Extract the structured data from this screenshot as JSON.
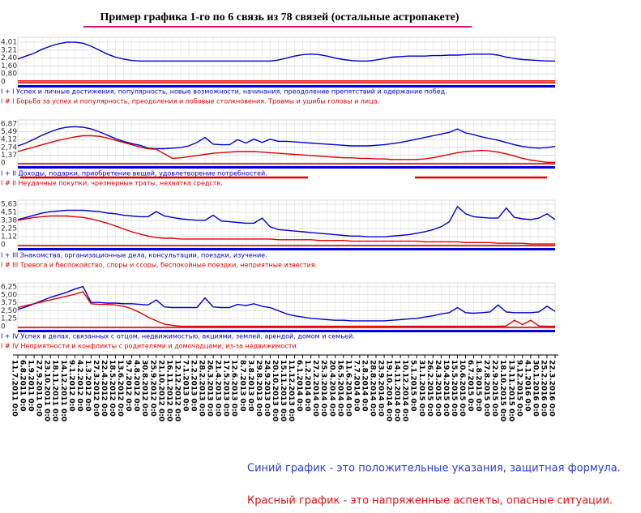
{
  "title": "Пример графика 1-го по 6 связь из 78 связей (остальные астропакете)",
  "notes": [
    {
      "text": "Синий график - это положительные указания, защитная формула.",
      "color": "#2a3fd6"
    },
    {
      "text": "Красный график - это напряженные аспекты, опасные ситуации.",
      "color": "#e01010"
    }
  ],
  "chart_data": [
    {
      "type": "line",
      "ylim": [
        0,
        4.01
      ],
      "yticks": [
        {
          "value": 4.01,
          "label": "4,01"
        },
        {
          "value": 3.21,
          "label": "3,21"
        },
        {
          "value": 2.4,
          "label": "2,40"
        },
        {
          "value": 1.6,
          "label": "1,60"
        },
        {
          "value": 0.8,
          "label": "0,80"
        },
        0
      ],
      "series": [
        {
          "name": "I + I Успех и личные достижения, популярность, новые возможности, начинания, преодоление препятствий и одержание побед.",
          "color": "#0000cc",
          "values": [
            2.3,
            2.6,
            2.9,
            3.3,
            3.6,
            3.85,
            4.0,
            4.0,
            3.9,
            3.6,
            3.2,
            2.8,
            2.5,
            2.3,
            2.15,
            2.1,
            2.1,
            2.1,
            2.1,
            2.1,
            2.1,
            2.1,
            2.1,
            2.1,
            2.1,
            2.1,
            2.1,
            2.1,
            2.1,
            2.1,
            2.1,
            2.1,
            2.2,
            2.4,
            2.6,
            2.75,
            2.8,
            2.75,
            2.6,
            2.4,
            2.25,
            2.15,
            2.1,
            2.1,
            2.2,
            2.35,
            2.5,
            2.55,
            2.6,
            2.6,
            2.6,
            2.65,
            2.65,
            2.7,
            2.7,
            2.75,
            2.8,
            2.8,
            2.8,
            2.7,
            2.5,
            2.35,
            2.25,
            2.2,
            2.15,
            2.1,
            2.1
          ]
        },
        {
          "name": "I # I Борьба за успех и популярность, преодоления и лобовые столкновения. Травмы и ушибы головы и лица.",
          "color": "#dd0000",
          "values": [
            0.1,
            0.1,
            0.1,
            0.1,
            0.1,
            0.1,
            0.1,
            0.1,
            0.1,
            0.1,
            0.1,
            0.1,
            0.1,
            0.1,
            0.1,
            0.1,
            0.1,
            0.1,
            0.1,
            0.1,
            0.1,
            0.1,
            0.1,
            0.1,
            0.1,
            0.1,
            0.1,
            0.1,
            0.1,
            0.1,
            0.1,
            0.1,
            0.1,
            0.1,
            0.1,
            0.1,
            0.1,
            0.1,
            0.1,
            0.1,
            0.1,
            0.1,
            0.1,
            0.1,
            0.1,
            0.1,
            0.1,
            0.1,
            0.1,
            0.1,
            0.1,
            0.1,
            0.1,
            0.1,
            0.1,
            0.1,
            0.1,
            0.1,
            0.1,
            0.1,
            0.1,
            0.1,
            0.1,
            0.1,
            0.1,
            0.1,
            0.1
          ]
        }
      ]
    },
    {
      "type": "line",
      "ylim": [
        0,
        6.87
      ],
      "yticks": [
        {
          "value": 6.87,
          "label": "6,87"
        },
        {
          "value": 5.49,
          "label": "5,49"
        },
        {
          "value": 4.12,
          "label": "4,12"
        },
        {
          "value": 2.74,
          "label": "2,74"
        },
        {
          "value": 1.37,
          "label": "1,37"
        },
        0
      ],
      "series": [
        {
          "name": "I + II Доходы, подарки, приобретение вещей, удовлетворение потребностей.",
          "color": "#0000cc",
          "values": [
            3.0,
            3.5,
            4.2,
            4.9,
            5.5,
            6.0,
            6.3,
            6.4,
            6.3,
            6.0,
            5.5,
            4.9,
            4.3,
            3.8,
            3.4,
            3.1,
            2.6,
            2.5,
            2.5,
            2.6,
            2.7,
            3.0,
            3.6,
            4.5,
            3.3,
            3.2,
            3.2,
            4.1,
            3.5,
            4.2,
            3.6,
            4.2,
            3.8,
            3.8,
            3.7,
            3.6,
            3.5,
            3.4,
            3.3,
            3.2,
            3.1,
            3.0,
            3.0,
            3.0,
            3.1,
            3.2,
            3.4,
            3.6,
            3.9,
            4.2,
            4.5,
            4.8,
            5.1,
            5.4,
            6.0,
            5.3,
            5.0,
            4.6,
            4.3,
            4.0,
            3.6,
            3.2,
            2.9,
            2.7,
            2.6,
            2.7,
            2.9
          ]
        },
        {
          "name": "I # II Неудачные покупки, чрезмерные траты, нехватка средств.",
          "color": "#dd0000",
          "values": [
            2.0,
            2.4,
            2.8,
            3.2,
            3.6,
            4.0,
            4.3,
            4.6,
            4.8,
            4.8,
            4.7,
            4.4,
            4.0,
            3.6,
            3.2,
            2.8,
            2.5,
            2.4,
            1.6,
            0.8,
            0.9,
            1.1,
            1.3,
            1.5,
            1.7,
            1.8,
            1.9,
            2.0,
            2.0,
            2.0,
            1.9,
            1.8,
            1.7,
            1.6,
            1.5,
            1.4,
            1.3,
            1.2,
            1.1,
            1.0,
            0.9,
            0.9,
            0.8,
            0.8,
            0.7,
            0.7,
            0.6,
            0.6,
            0.6,
            0.6,
            0.7,
            0.9,
            1.2,
            1.5,
            1.8,
            2.0,
            2.1,
            2.2,
            2.1,
            1.9,
            1.6,
            1.2,
            0.8,
            0.5,
            0.3,
            0.1,
            0.1
          ]
        }
      ]
    },
    {
      "type": "line",
      "ylim": [
        0,
        5.63
      ],
      "yticks": [
        {
          "value": 5.63,
          "label": "5,63"
        },
        {
          "value": 4.51,
          "label": "4,51"
        },
        {
          "value": 3.38,
          "label": "3,38"
        },
        {
          "value": 2.25,
          "label": "2,25"
        },
        {
          "value": 1.12,
          "label": "1,12"
        },
        0
      ],
      "series": [
        {
          "name": "I + III Знакомства, организационные дела, консультации, поездки, изучение.",
          "color": "#0000cc",
          "values": [
            3.5,
            3.8,
            4.1,
            4.4,
            4.6,
            4.7,
            4.8,
            4.8,
            4.8,
            4.7,
            4.6,
            4.4,
            4.3,
            4.1,
            4.0,
            3.9,
            3.9,
            4.6,
            4.0,
            3.8,
            3.6,
            3.5,
            3.4,
            3.4,
            4.1,
            3.3,
            3.2,
            3.1,
            3.0,
            3.0,
            3.7,
            2.5,
            2.1,
            2.0,
            1.9,
            1.8,
            1.7,
            1.6,
            1.5,
            1.4,
            1.3,
            1.2,
            1.2,
            1.1,
            1.1,
            1.1,
            1.2,
            1.3,
            1.4,
            1.6,
            1.8,
            2.1,
            2.5,
            3.2,
            5.3,
            4.3,
            3.9,
            3.8,
            3.7,
            3.7,
            5.1,
            3.8,
            3.6,
            3.5,
            3.7,
            4.3,
            3.5
          ]
        },
        {
          "name": "I # III Тревога и беспокойство, споры и ссоры, беспокойные поездки, неприятные известия.",
          "color": "#dd0000",
          "values": [
            3.4,
            3.6,
            3.8,
            3.9,
            4.0,
            4.0,
            4.0,
            3.9,
            3.8,
            3.6,
            3.3,
            3.0,
            2.6,
            2.2,
            1.8,
            1.5,
            1.2,
            1.0,
            0.9,
            0.9,
            0.8,
            0.8,
            0.8,
            0.8,
            0.8,
            0.8,
            0.8,
            0.8,
            0.8,
            0.8,
            0.8,
            0.8,
            0.7,
            0.7,
            0.7,
            0.7,
            0.7,
            0.6,
            0.6,
            0.6,
            0.6,
            0.5,
            0.5,
            0.5,
            0.5,
            0.5,
            0.5,
            0.5,
            0.5,
            0.5,
            0.4,
            0.4,
            0.4,
            0.4,
            0.4,
            0.3,
            0.3,
            0.3,
            0.3,
            0.2,
            0.2,
            0.2,
            0.2,
            0.1,
            0.1,
            0.1,
            0.1
          ]
        }
      ]
    },
    {
      "type": "line",
      "ylim": [
        0,
        6.25
      ],
      "yticks": [
        {
          "value": 6.25,
          "label": "6,25"
        },
        {
          "value": 5.0,
          "label": "5,00"
        },
        {
          "value": 3.75,
          "label": "3,75"
        },
        {
          "value": 2.5,
          "label": "2,50"
        },
        {
          "value": 1.25,
          "label": "1,25"
        },
        0
      ],
      "series": [
        {
          "name": "I + IV Успех в делах, связанных с отцом, недвижимостью, акциями, землей, арендой, домом и семьей.",
          "color": "#0000cc",
          "values": [
            2.7,
            3.1,
            3.6,
            4.1,
            4.6,
            5.0,
            5.4,
            5.9,
            6.3,
            3.8,
            3.8,
            3.7,
            3.7,
            3.6,
            3.6,
            3.5,
            3.4,
            4.2,
            3.1,
            3.0,
            3.0,
            3.0,
            3.0,
            4.5,
            3.1,
            3.0,
            3.0,
            3.5,
            3.3,
            3.6,
            3.2,
            3.0,
            2.5,
            2.0,
            1.7,
            1.5,
            1.3,
            1.2,
            1.1,
            1.0,
            1.0,
            0.9,
            0.9,
            0.9,
            0.9,
            0.9,
            1.0,
            1.1,
            1.2,
            1.3,
            1.5,
            1.7,
            2.0,
            2.2,
            3.0,
            2.2,
            2.1,
            2.2,
            2.3,
            3.4,
            2.3,
            2.2,
            2.2,
            2.2,
            2.3,
            3.2,
            2.4
          ]
        },
        {
          "name": "I # IV Неприятности и конфликты с родителями и домочадцами, из-за недвижимости.",
          "color": "#dd0000",
          "values": [
            3.0,
            3.3,
            3.6,
            3.9,
            4.2,
            4.5,
            4.8,
            5.1,
            5.5,
            3.6,
            3.5,
            3.5,
            3.4,
            3.2,
            2.8,
            2.2,
            1.5,
            0.9,
            0.4,
            0.2,
            0.05,
            0.05,
            0.05,
            0.05,
            0.05,
            0.05,
            0.05,
            0.05,
            0.05,
            0.05,
            0.05,
            0.05,
            0.05,
            0.05,
            0.05,
            0.05,
            0.05,
            0.05,
            0.05,
            0.05,
            0.05,
            0.05,
            0.05,
            0.05,
            0.05,
            0.05,
            0.05,
            0.05,
            0.05,
            0.05,
            0.05,
            0.05,
            0.05,
            0.05,
            0.05,
            0.05,
            0.05,
            0.05,
            0.05,
            0.05,
            0.1,
            1.0,
            0.3,
            1.0,
            0.1,
            0.05,
            0.05
          ]
        }
      ],
      "categories": [
        "11.7.2011 0:0",
        "6.8.2011 0:0",
        "1.9.2011 0:0",
        "27.9.2011 0:0",
        "23.10.2011 0:0",
        "18.11.2011 0:0",
        "14.12.2011 0:0",
        "9.1.2012 0:0",
        "4.2.2012 0:0",
        "1.3.2012 0:0",
        "27.3.2012 0:0",
        "22.4.2012 0:0",
        "18.5.2012 0:0",
        "13.6.2012 0:0",
        "9.7.2012 0:0",
        "4.8.2012 0:0",
        "30.8.2012 0:0",
        "25.9.2012 0:0",
        "21.10.2012 0:0",
        "16.11.2012 0:0",
        "12.12.2012 0:0",
        "7.1.2013 0:0",
        "2.2.2013 0:0",
        "28.2.2013 0:0",
        "26.3.2013 0:0",
        "21.4.2013 0:0",
        "17.5.2013 0:0",
        "12.6.2013 0:0",
        "8.7.2013 0:0",
        "3.8.2013 0:0",
        "29.8.2013 0:0",
        "24.9.2013 0:0",
        "20.10.2013 0:0",
        "15.11.2013 0:0",
        "11.12.2013 0:0",
        "6.1.2014 0:0",
        "1.2.2014 0:0",
        "27.2.2014 0:0",
        "25.3.2014 0:0",
        "20.4.2014 0:0",
        "16.5.2014 0:0",
        "11.6.2014 0:0",
        "7.7.2014 0:0",
        "2.8.2014 0:0",
        "28.8.2014 0:0",
        "23.9.2014 0:0",
        "19.10.2014 0:0",
        "14.11.2014 0:0",
        "10.12.2014 0:0",
        "5.1.2015 0:0",
        "31.1.2015 0:0",
        "26.2.2015 0:0",
        "24.3.2015 0:0",
        "19.4.2015 0:0",
        "15.5.2015 0:0",
        "10.6.2015 0:0",
        "6.7.2015 0:0",
        "1.8.2015 0:0",
        "27.8.2015 0:0",
        "22.9.2015 0:0",
        "18.10.2015 0:0",
        "13.11.2015 0:0",
        "9.12.2015 0:0",
        "4.1.2016 0:0",
        "30.1.2016 0:0",
        "25.2.2016 0:0",
        "22.3.2016 0:0"
      ]
    }
  ]
}
